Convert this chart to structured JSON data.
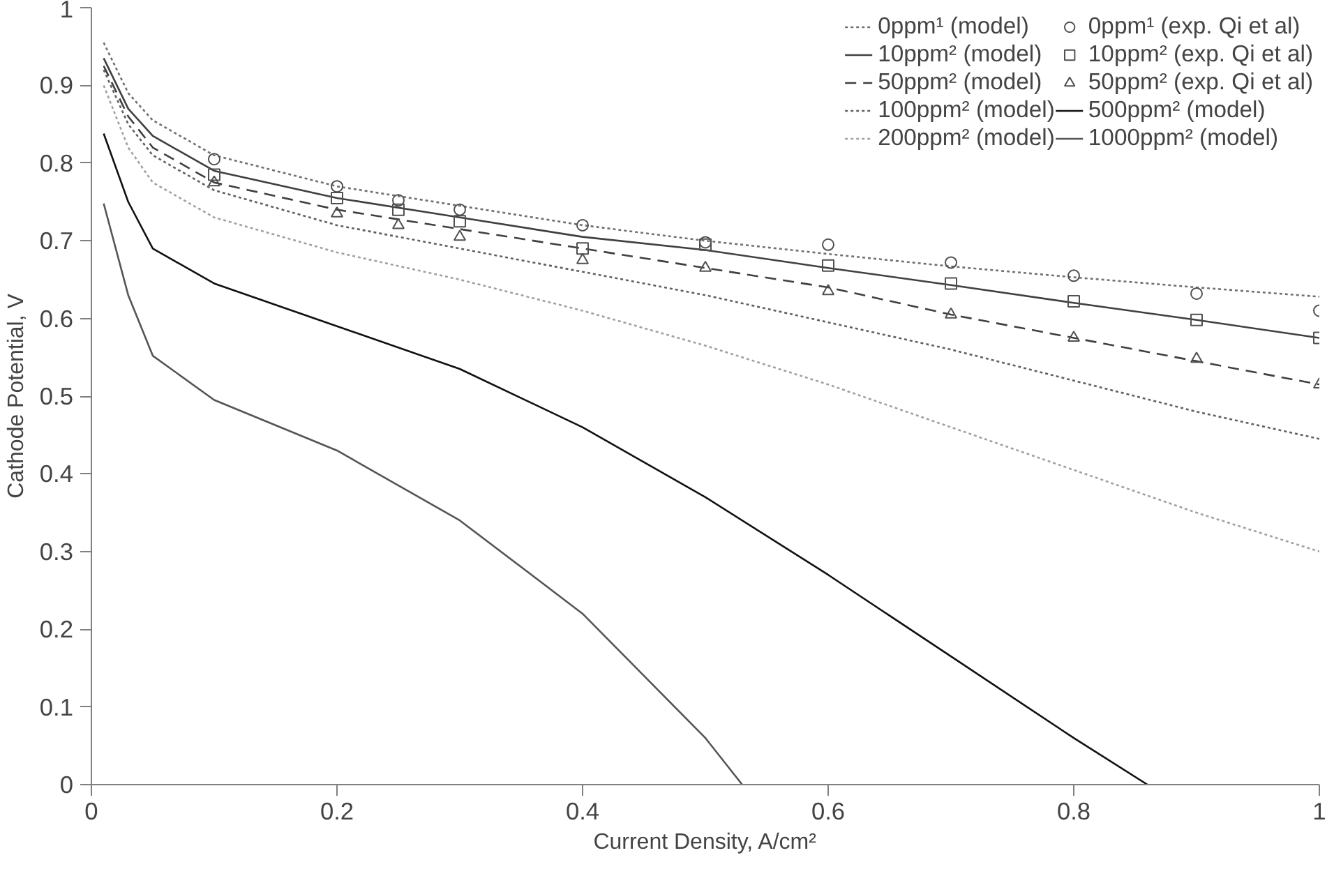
{
  "chart_data": {
    "type": "line",
    "xlabel": "Current Density, A/cm²",
    "ylabel": "Cathode Potential, V",
    "xlim": [
      0,
      1
    ],
    "ylim": [
      0,
      1
    ],
    "xticks": [
      0,
      0.2,
      0.4,
      0.6,
      0.8,
      1
    ],
    "yticks": [
      0,
      0.1,
      0.2,
      0.3,
      0.4,
      0.5,
      0.6,
      0.7,
      0.8,
      0.9,
      1
    ],
    "grid": false,
    "legend": "top right",
    "series": [
      {
        "name": "0ppm¹ (model)",
        "color": "#707070",
        "line_style": "dotted",
        "x": [
          0.01,
          0.03,
          0.05,
          0.1,
          0.2,
          0.3,
          0.4,
          0.5,
          0.6,
          0.7,
          0.8,
          0.9,
          1.0
        ],
        "values": [
          0.955,
          0.89,
          0.855,
          0.81,
          0.77,
          0.745,
          0.72,
          0.7,
          0.683,
          0.667,
          0.653,
          0.64,
          0.628
        ]
      },
      {
        "name": "10ppm² (model)",
        "color": "#404040",
        "line_style": "solid",
        "x": [
          0.01,
          0.03,
          0.05,
          0.1,
          0.2,
          0.3,
          0.4,
          0.5,
          0.6,
          0.7,
          0.8,
          0.9,
          1.0
        ],
        "values": [
          0.935,
          0.87,
          0.835,
          0.79,
          0.755,
          0.73,
          0.705,
          0.688,
          0.665,
          0.643,
          0.62,
          0.598,
          0.575
        ]
      },
      {
        "name": "50ppm² (model)",
        "color": "#404040",
        "line_style": "dashed",
        "x": [
          0.01,
          0.03,
          0.05,
          0.1,
          0.2,
          0.3,
          0.4,
          0.5,
          0.6,
          0.7,
          0.8,
          0.9,
          1.0
        ],
        "values": [
          0.925,
          0.86,
          0.82,
          0.775,
          0.74,
          0.715,
          0.69,
          0.665,
          0.64,
          0.605,
          0.575,
          0.545,
          0.515
        ]
      },
      {
        "name": "100ppm² (model)",
        "color": "#606060",
        "line_style": "dotted",
        "x": [
          0.01,
          0.03,
          0.05,
          0.1,
          0.2,
          0.3,
          0.4,
          0.5,
          0.6,
          0.7,
          0.8,
          0.9,
          1.0
        ],
        "values": [
          0.92,
          0.85,
          0.81,
          0.765,
          0.72,
          0.69,
          0.66,
          0.63,
          0.595,
          0.56,
          0.52,
          0.48,
          0.445
        ]
      },
      {
        "name": "200ppm² (model)",
        "color": "#a0a0a0",
        "line_style": "dotted",
        "x": [
          0.01,
          0.03,
          0.05,
          0.1,
          0.2,
          0.3,
          0.4,
          0.5,
          0.6,
          0.7,
          0.8,
          0.9,
          1.0
        ],
        "values": [
          0.9,
          0.82,
          0.775,
          0.73,
          0.685,
          0.65,
          0.61,
          0.565,
          0.515,
          0.46,
          0.405,
          0.35,
          0.3
        ]
      },
      {
        "name": "0ppm¹ (exp. Qi et al)",
        "type": "scatter",
        "marker": "circle",
        "color": "#505050",
        "x": [
          0.1,
          0.2,
          0.25,
          0.3,
          0.4,
          0.5,
          0.6,
          0.7,
          0.8,
          0.9,
          1.0
        ],
        "values": [
          0.805,
          0.77,
          0.752,
          0.74,
          0.72,
          0.698,
          0.695,
          0.672,
          0.655,
          0.632,
          0.61
        ]
      },
      {
        "name": "10ppm² (exp. Qi et al)",
        "type": "scatter",
        "marker": "square",
        "color": "#505050",
        "x": [
          0.1,
          0.2,
          0.25,
          0.3,
          0.4,
          0.5,
          0.6,
          0.7,
          0.8,
          0.9,
          1.0
        ],
        "values": [
          0.785,
          0.755,
          0.74,
          0.725,
          0.69,
          0.695,
          0.668,
          0.645,
          0.622,
          0.598,
          0.575
        ]
      },
      {
        "name": "50ppm² (exp. Qi et al)",
        "type": "scatter",
        "marker": "triangle",
        "color": "#505050",
        "x": [
          0.1,
          0.2,
          0.25,
          0.3,
          0.4,
          0.5,
          0.6,
          0.7,
          0.8,
          0.9,
          1.0
        ],
        "values": [
          0.775,
          0.735,
          0.72,
          0.705,
          0.675,
          0.665,
          0.635,
          0.605,
          0.575,
          0.548,
          0.515
        ]
      },
      {
        "name": "500ppm² (model)",
        "color": "#111111",
        "line_style": "solid",
        "x": [
          0.01,
          0.03,
          0.05,
          0.1,
          0.2,
          0.3,
          0.4,
          0.5,
          0.6,
          0.7,
          0.8,
          0.86
        ],
        "values": [
          0.838,
          0.75,
          0.69,
          0.645,
          0.59,
          0.535,
          0.46,
          0.37,
          0.27,
          0.165,
          0.06,
          0
        ]
      },
      {
        "name": "1000ppm² (model)",
        "color": "#555555",
        "line_style": "solid",
        "x": [
          0.01,
          0.03,
          0.05,
          0.1,
          0.2,
          0.3,
          0.4,
          0.5,
          0.53
        ],
        "values": [
          0.748,
          0.63,
          0.552,
          0.495,
          0.43,
          0.34,
          0.22,
          0.06,
          0
        ]
      }
    ]
  }
}
